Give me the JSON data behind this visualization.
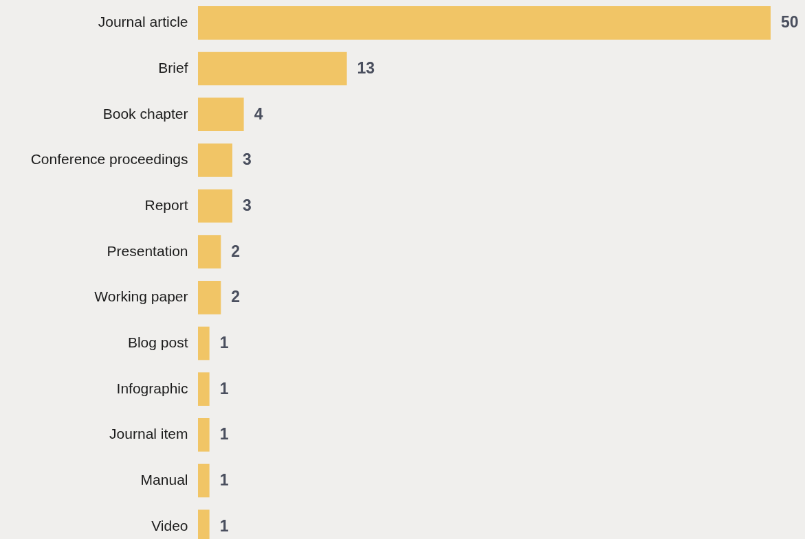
{
  "chart_data": {
    "type": "bar",
    "orientation": "horizontal",
    "categories": [
      "Journal article",
      "Brief",
      "Book chapter",
      "Conference proceedings",
      "Report",
      "Presentation",
      "Working paper",
      "Blog post",
      "Infographic",
      "Journal item",
      "Manual",
      "Video"
    ],
    "values": [
      50,
      13,
      4,
      3,
      3,
      2,
      2,
      1,
      1,
      1,
      1,
      1
    ],
    "color": "#f1c566",
    "data_labels": true
  }
}
